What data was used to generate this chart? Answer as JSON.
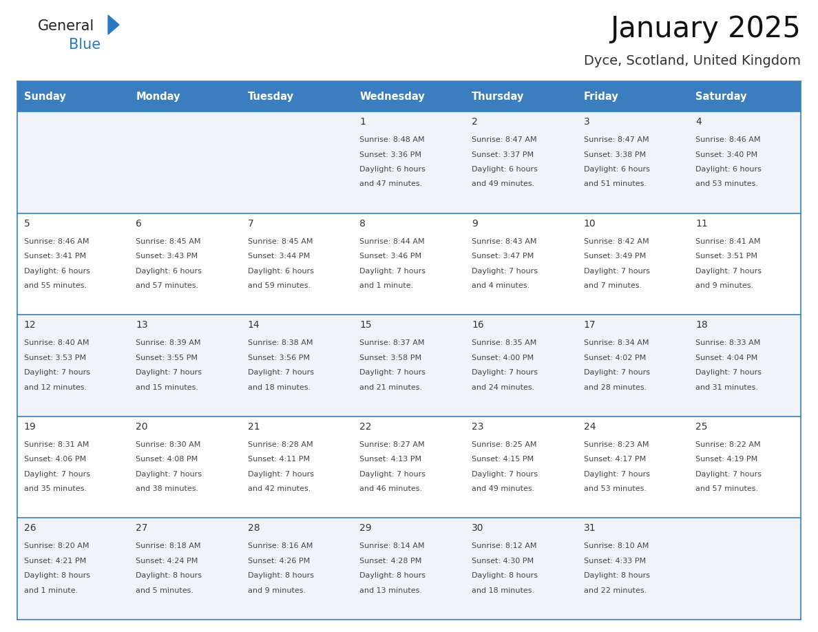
{
  "title": "January 2025",
  "subtitle": "Dyce, Scotland, United Kingdom",
  "days_of_week": [
    "Sunday",
    "Monday",
    "Tuesday",
    "Wednesday",
    "Thursday",
    "Friday",
    "Saturday"
  ],
  "header_bg": "#3a7ebf",
  "header_text": "#ffffff",
  "cell_bg_light": "#f0f4f8",
  "cell_bg_white": "#ffffff",
  "separator_color": "#3a7ebf",
  "text_color": "#333333",
  "logo_general_color": "#222222",
  "logo_blue_color": "#2979c0",
  "calendar_data": [
    [
      {
        "day": 0
      },
      {
        "day": 0
      },
      {
        "day": 0
      },
      {
        "day": 1,
        "sunrise": "8:48 AM",
        "sunset": "3:36 PM",
        "daylight": "6 hours and 47 minutes"
      },
      {
        "day": 2,
        "sunrise": "8:47 AM",
        "sunset": "3:37 PM",
        "daylight": "6 hours and 49 minutes"
      },
      {
        "day": 3,
        "sunrise": "8:47 AM",
        "sunset": "3:38 PM",
        "daylight": "6 hours and 51 minutes"
      },
      {
        "day": 4,
        "sunrise": "8:46 AM",
        "sunset": "3:40 PM",
        "daylight": "6 hours and 53 minutes"
      }
    ],
    [
      {
        "day": 5,
        "sunrise": "8:46 AM",
        "sunset": "3:41 PM",
        "daylight": "6 hours and 55 minutes"
      },
      {
        "day": 6,
        "sunrise": "8:45 AM",
        "sunset": "3:43 PM",
        "daylight": "6 hours and 57 minutes"
      },
      {
        "day": 7,
        "sunrise": "8:45 AM",
        "sunset": "3:44 PM",
        "daylight": "6 hours and 59 minutes"
      },
      {
        "day": 8,
        "sunrise": "8:44 AM",
        "sunset": "3:46 PM",
        "daylight": "7 hours and 1 minute"
      },
      {
        "day": 9,
        "sunrise": "8:43 AM",
        "sunset": "3:47 PM",
        "daylight": "7 hours and 4 minutes"
      },
      {
        "day": 10,
        "sunrise": "8:42 AM",
        "sunset": "3:49 PM",
        "daylight": "7 hours and 7 minutes"
      },
      {
        "day": 11,
        "sunrise": "8:41 AM",
        "sunset": "3:51 PM",
        "daylight": "7 hours and 9 minutes"
      }
    ],
    [
      {
        "day": 12,
        "sunrise": "8:40 AM",
        "sunset": "3:53 PM",
        "daylight": "7 hours and 12 minutes"
      },
      {
        "day": 13,
        "sunrise": "8:39 AM",
        "sunset": "3:55 PM",
        "daylight": "7 hours and 15 minutes"
      },
      {
        "day": 14,
        "sunrise": "8:38 AM",
        "sunset": "3:56 PM",
        "daylight": "7 hours and 18 minutes"
      },
      {
        "day": 15,
        "sunrise": "8:37 AM",
        "sunset": "3:58 PM",
        "daylight": "7 hours and 21 minutes"
      },
      {
        "day": 16,
        "sunrise": "8:35 AM",
        "sunset": "4:00 PM",
        "daylight": "7 hours and 24 minutes"
      },
      {
        "day": 17,
        "sunrise": "8:34 AM",
        "sunset": "4:02 PM",
        "daylight": "7 hours and 28 minutes"
      },
      {
        "day": 18,
        "sunrise": "8:33 AM",
        "sunset": "4:04 PM",
        "daylight": "7 hours and 31 minutes"
      }
    ],
    [
      {
        "day": 19,
        "sunrise": "8:31 AM",
        "sunset": "4:06 PM",
        "daylight": "7 hours and 35 minutes"
      },
      {
        "day": 20,
        "sunrise": "8:30 AM",
        "sunset": "4:08 PM",
        "daylight": "7 hours and 38 minutes"
      },
      {
        "day": 21,
        "sunrise": "8:28 AM",
        "sunset": "4:11 PM",
        "daylight": "7 hours and 42 minutes"
      },
      {
        "day": 22,
        "sunrise": "8:27 AM",
        "sunset": "4:13 PM",
        "daylight": "7 hours and 46 minutes"
      },
      {
        "day": 23,
        "sunrise": "8:25 AM",
        "sunset": "4:15 PM",
        "daylight": "7 hours and 49 minutes"
      },
      {
        "day": 24,
        "sunrise": "8:23 AM",
        "sunset": "4:17 PM",
        "daylight": "7 hours and 53 minutes"
      },
      {
        "day": 25,
        "sunrise": "8:22 AM",
        "sunset": "4:19 PM",
        "daylight": "7 hours and 57 minutes"
      }
    ],
    [
      {
        "day": 26,
        "sunrise": "8:20 AM",
        "sunset": "4:21 PM",
        "daylight": "8 hours and 1 minute"
      },
      {
        "day": 27,
        "sunrise": "8:18 AM",
        "sunset": "4:24 PM",
        "daylight": "8 hours and 5 minutes"
      },
      {
        "day": 28,
        "sunrise": "8:16 AM",
        "sunset": "4:26 PM",
        "daylight": "8 hours and 9 minutes"
      },
      {
        "day": 29,
        "sunrise": "8:14 AM",
        "sunset": "4:28 PM",
        "daylight": "8 hours and 13 minutes"
      },
      {
        "day": 30,
        "sunrise": "8:12 AM",
        "sunset": "4:30 PM",
        "daylight": "8 hours and 18 minutes"
      },
      {
        "day": 31,
        "sunrise": "8:10 AM",
        "sunset": "4:33 PM",
        "daylight": "8 hours and 22 minutes"
      },
      {
        "day": 0
      }
    ]
  ]
}
